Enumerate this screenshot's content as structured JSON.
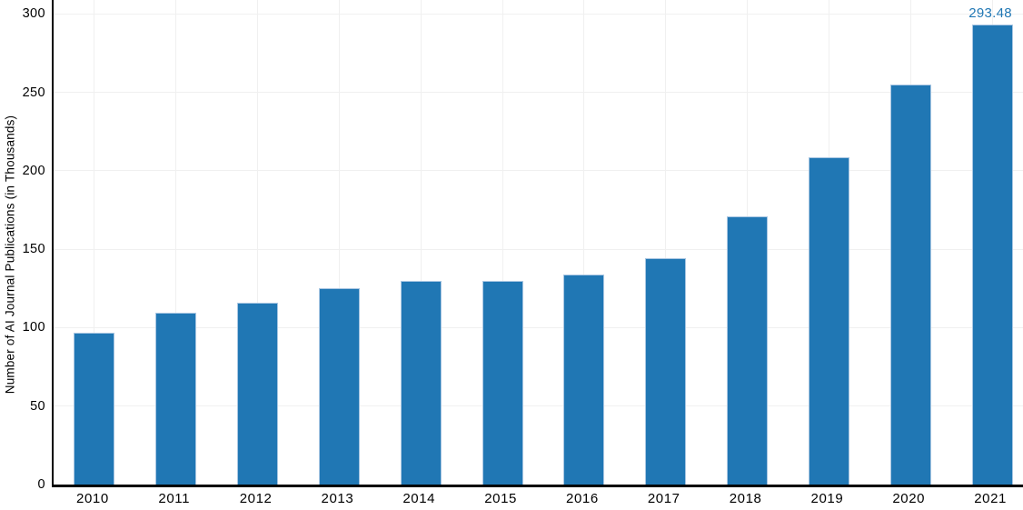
{
  "chart_data": {
    "type": "bar",
    "title": "",
    "xlabel": "",
    "ylabel": "Number of AI Journal Publications (in Thousands)",
    "categories": [
      "2010",
      "2011",
      "2012",
      "2013",
      "2014",
      "2015",
      "2016",
      "2017",
      "2018",
      "2019",
      "2020",
      "2021"
    ],
    "values": [
      96.9,
      109.5,
      115.9,
      125.2,
      129.6,
      129.9,
      133.7,
      144.1,
      171.0,
      208.9,
      255.2,
      293.48
    ],
    "annotations": [
      {
        "category": "2021",
        "text": "293.48"
      }
    ],
    "yticks": [
      0,
      50,
      100,
      150,
      200,
      250,
      300
    ],
    "ylim": [
      0,
      300
    ],
    "grid": "both",
    "legend": "none",
    "colors": {
      "bar_fill": "#2077b4",
      "bar_edge": "#a8c6e2",
      "annotation_text": "#2077b4",
      "axis_line": "#000000",
      "gridline": "#f0f0f0",
      "tick_text": "#000000"
    }
  }
}
